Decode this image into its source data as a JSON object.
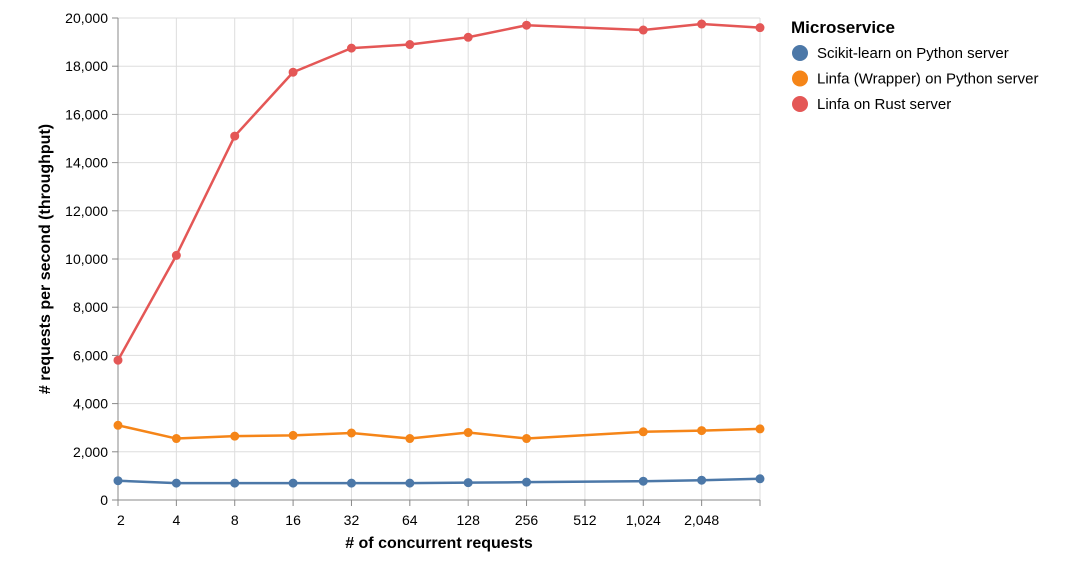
{
  "chart_data": {
    "type": "line",
    "x": [
      2,
      4,
      8,
      16,
      32,
      64,
      128,
      256,
      512,
      1024,
      2048,
      4096
    ],
    "x_tick_labels": [
      "2",
      "4",
      "8",
      "16",
      "32",
      "64",
      "128",
      "256",
      "512",
      "1,024",
      "2,048"
    ],
    "x_scale": "log2",
    "xlabel": "# of concurrent requests",
    "ylabel": "# requests per second (throughput)",
    "ylim": [
      0,
      20000
    ],
    "y_ticks": [
      0,
      2000,
      4000,
      6000,
      8000,
      10000,
      12000,
      14000,
      16000,
      18000,
      20000
    ],
    "y_tick_labels": [
      "0",
      "2,000",
      "4,000",
      "6,000",
      "8,000",
      "10,000",
      "12,000",
      "14,000",
      "16,000",
      "18,000",
      "20,000"
    ],
    "grid": true,
    "legend_title": "Microservice",
    "legend_position": "top-right",
    "series": [
      {
        "name": "Scikit-learn on Python server",
        "color": "#4c78a8",
        "x": [
          2,
          4,
          8,
          16,
          32,
          64,
          128,
          256,
          1024,
          2048,
          4096
        ],
        "values": [
          800,
          700,
          700,
          700,
          700,
          700,
          720,
          740,
          780,
          820,
          880
        ]
      },
      {
        "name": "Linfa (Wrapper) on Python server",
        "color": "#f58518",
        "x": [
          2,
          4,
          8,
          16,
          32,
          64,
          128,
          256,
          1024,
          2048,
          4096
        ],
        "values": [
          3100,
          2550,
          2650,
          2680,
          2780,
          2550,
          2800,
          2550,
          2830,
          2880,
          2950
        ]
      },
      {
        "name": "Linfa on Rust server",
        "color": "#e45756",
        "x": [
          2,
          4,
          8,
          16,
          32,
          64,
          128,
          256,
          1024,
          2048,
          4096
        ],
        "values": [
          5800,
          10150,
          15100,
          17750,
          18750,
          18900,
          19200,
          19700,
          19500,
          19750,
          19600
        ]
      }
    ]
  }
}
